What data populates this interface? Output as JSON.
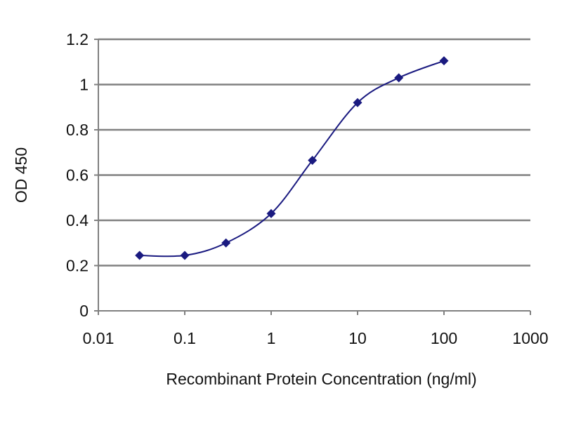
{
  "chart_data": {
    "type": "line",
    "x_scale": "log",
    "xlim": [
      0.01,
      1000
    ],
    "ylim": [
      0,
      1.2
    ],
    "x_ticks": [
      {
        "value": 0.01,
        "label": "0.01"
      },
      {
        "value": 0.1,
        "label": "0.1"
      },
      {
        "value": 1,
        "label": "1"
      },
      {
        "value": 10,
        "label": "10"
      },
      {
        "value": 100,
        "label": "100"
      },
      {
        "value": 1000,
        "label": "1000"
      }
    ],
    "y_ticks": [
      {
        "value": 0,
        "label": "0"
      },
      {
        "value": 0.2,
        "label": "0.2"
      },
      {
        "value": 0.4,
        "label": "0.4"
      },
      {
        "value": 0.6,
        "label": "0.6"
      },
      {
        "value": 0.8,
        "label": "0.8"
      },
      {
        "value": 1.0,
        "label": "1"
      },
      {
        "value": 1.2,
        "label": "1.2"
      }
    ],
    "xlabel": "Recombinant Protein Concentration (ng/ml)",
    "ylabel": "OD 450",
    "grid": "horizontal",
    "series": [
      {
        "color": "#1a1a80",
        "marker": "diamond",
        "smooth": true,
        "points": [
          {
            "x": 0.03,
            "y": 0.245
          },
          {
            "x": 0.1,
            "y": 0.245
          },
          {
            "x": 0.3,
            "y": 0.3
          },
          {
            "x": 1,
            "y": 0.43
          },
          {
            "x": 3,
            "y": 0.665
          },
          {
            "x": 10,
            "y": 0.92
          },
          {
            "x": 30,
            "y": 1.03
          },
          {
            "x": 100,
            "y": 1.105
          }
        ]
      }
    ],
    "colors": {
      "plot_background": "#ffffff",
      "grid": "#808080",
      "axis": "#808080",
      "series": "#1a1a80"
    }
  }
}
